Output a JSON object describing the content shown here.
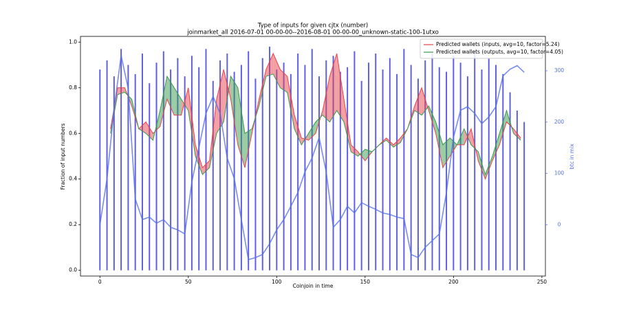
{
  "chart_data": {
    "type": "line",
    "title": "Type of inputs for given cjtx (number)",
    "subtitle": "joinmarket_all 2016-07-01 00-00-00--2016-08-01 00-00-00_unknown-static-100-1utxo",
    "x_label": "Coinjoin in time",
    "y_label": "Fraction of input numbers",
    "y2_label": "btc in mix",
    "xlim": [
      -11,
      252
    ],
    "xticks": [
      0,
      50,
      100,
      150,
      200,
      250
    ],
    "ylim": [
      -0.025,
      1.025
    ],
    "yticks": [
      {
        "value": 0,
        "label": "0.0"
      },
      0.2,
      0.4,
      0.6,
      0.8,
      {
        "value": 1,
        "label": "1.0"
      }
    ],
    "y2lim": [
      -100,
      367
    ],
    "y2ticks": [
      0,
      100,
      200,
      300
    ],
    "legend": "upper right",
    "fill_between": true,
    "series": [
      {
        "name": "Predicted wallets (inputs, avg=10, factor=5.24)",
        "color": "#e8414a",
        "kind": "line",
        "x": [
          6,
          10,
          14,
          18,
          22,
          26,
          30,
          34,
          38,
          42,
          46,
          50,
          54,
          58,
          62,
          66,
          70,
          74,
          78,
          82,
          86,
          90,
          94,
          98,
          102,
          106,
          110,
          114,
          118,
          122,
          126,
          130,
          134,
          138,
          142,
          146,
          150,
          154,
          158,
          162,
          166,
          170,
          174,
          178,
          182,
          186,
          190,
          194,
          198,
          202,
          206,
          210,
          214,
          218,
          222,
          226,
          230,
          234,
          238
        ],
        "values": [
          0.62,
          0.8,
          0.8,
          0.72,
          0.62,
          0.65,
          0.6,
          0.63,
          0.75,
          0.68,
          0.68,
          0.8,
          0.55,
          0.45,
          0.48,
          0.75,
          0.88,
          0.75,
          0.55,
          0.45,
          0.6,
          0.75,
          0.88,
          0.95,
          0.88,
          0.85,
          0.68,
          0.58,
          0.57,
          0.6,
          0.7,
          0.85,
          0.95,
          0.75,
          0.55,
          0.52,
          0.48,
          0.52,
          0.55,
          0.58,
          0.55,
          0.58,
          0.62,
          0.72,
          0.8,
          0.7,
          0.6,
          0.45,
          0.5,
          0.55,
          0.55,
          0.62,
          0.48,
          0.4,
          0.48,
          0.55,
          0.65,
          0.62,
          0.58
        ]
      },
      {
        "name": "Predicted wallets (outputs, avg=10, factor=4.05)",
        "color": "#3a9a4a",
        "kind": "line",
        "x": [
          6,
          10,
          14,
          18,
          22,
          26,
          30,
          34,
          38,
          42,
          46,
          50,
          54,
          58,
          62,
          66,
          70,
          74,
          78,
          82,
          86,
          90,
          94,
          98,
          102,
          106,
          110,
          114,
          118,
          122,
          126,
          130,
          134,
          138,
          142,
          146,
          150,
          154,
          158,
          162,
          166,
          170,
          174,
          178,
          182,
          186,
          190,
          194,
          198,
          202,
          206,
          210,
          214,
          218,
          222,
          226,
          230,
          234,
          238
        ],
        "values": [
          0.6,
          0.77,
          0.78,
          0.75,
          0.62,
          0.6,
          0.57,
          0.7,
          0.85,
          0.8,
          0.75,
          0.7,
          0.5,
          0.42,
          0.45,
          0.6,
          0.65,
          0.85,
          0.8,
          0.6,
          0.62,
          0.72,
          0.85,
          0.86,
          0.8,
          0.78,
          0.62,
          0.55,
          0.6,
          0.65,
          0.68,
          0.65,
          0.7,
          0.65,
          0.52,
          0.5,
          0.53,
          0.52,
          0.55,
          0.57,
          0.54,
          0.56,
          0.62,
          0.7,
          0.68,
          0.72,
          0.65,
          0.55,
          0.58,
          0.55,
          0.62,
          0.55,
          0.52,
          0.42,
          0.5,
          0.6,
          0.7,
          0.6,
          0.57
        ]
      },
      {
        "color": "#2a2ad6",
        "kind": "bar",
        "x": [
          0,
          4,
          8,
          12,
          16,
          20,
          24,
          28,
          32,
          36,
          40,
          44,
          48,
          52,
          56,
          60,
          64,
          68,
          72,
          76,
          80,
          84,
          88,
          92,
          96,
          100,
          104,
          108,
          112,
          116,
          120,
          124,
          128,
          132,
          136,
          140,
          144,
          148,
          152,
          156,
          160,
          164,
          168,
          172,
          176,
          180,
          184,
          188,
          192,
          196,
          200,
          204,
          208,
          212,
          216,
          220,
          224,
          228,
          232,
          236,
          240
        ],
        "values": [
          0.88,
          0.92,
          0.85,
          0.97,
          0.9,
          0.86,
          0.95,
          0.82,
          0.91,
          0.96,
          0.88,
          0.93,
          0.85,
          0.94,
          0.89,
          0.97,
          0.83,
          0.92,
          0.95,
          0.87,
          0.9,
          0.96,
          0.84,
          0.93,
          0.98,
          0.88,
          0.91,
          0.86,
          0.95,
          0.9,
          0.97,
          0.85,
          0.92,
          0.94,
          0.87,
          0.89,
          0.96,
          0.83,
          0.91,
          0.95,
          0.88,
          0.93,
          0.86,
          0.97,
          0.9,
          0.84,
          0.92,
          0.95,
          0.89,
          0.87,
          0.94,
          0.91,
          0.85,
          0.96,
          0.88,
          0.93,
          0.9,
          0.86,
          0.78,
          0.7,
          0.65
        ]
      },
      {
        "color": "#5470e8",
        "kind": "line",
        "axis": "y2",
        "x": [
          0,
          4,
          8,
          12,
          16,
          20,
          24,
          28,
          32,
          36,
          40,
          44,
          48,
          52,
          56,
          60,
          64,
          68,
          72,
          76,
          80,
          84,
          88,
          92,
          96,
          100,
          104,
          108,
          112,
          116,
          120,
          124,
          128,
          132,
          136,
          140,
          144,
          148,
          152,
          156,
          160,
          164,
          168,
          172,
          176,
          180,
          184,
          188,
          192,
          196,
          200,
          204,
          208,
          212,
          216,
          220,
          224,
          228,
          232,
          236,
          240
        ],
        "values": [
          0,
          90,
          225,
          330,
          265,
          50,
          10,
          15,
          3,
          10,
          -5,
          -10,
          -18,
          83,
          150,
          217,
          250,
          217,
          130,
          90,
          10,
          -68,
          -64,
          -58,
          -37,
          -10,
          10,
          36,
          63,
          103,
          130,
          170,
          103,
          -5,
          10,
          36,
          23,
          43,
          36,
          30,
          23,
          20,
          15,
          12,
          -58,
          -64,
          -44,
          -31,
          -18,
          63,
          170,
          223,
          230,
          217,
          197,
          210,
          230,
          290,
          303,
          310,
          297
        ]
      }
    ]
  }
}
